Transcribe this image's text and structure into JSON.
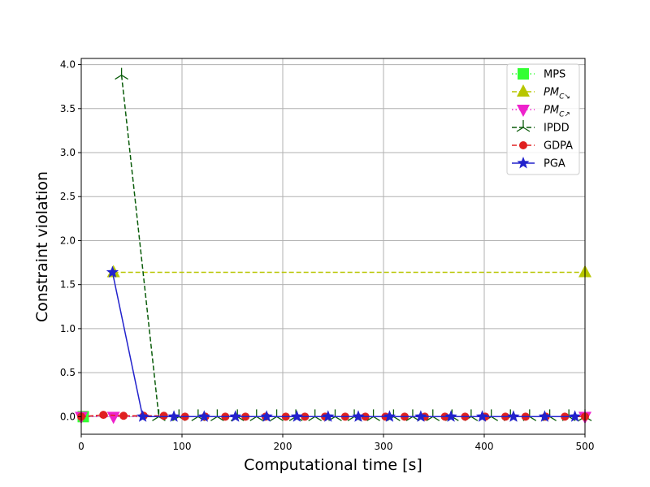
{
  "chart_data": {
    "type": "line",
    "xlabel": "Computational time [s]",
    "ylabel": "Constraint violation",
    "xlim": [
      0,
      500
    ],
    "ylim": [
      -0.2,
      4.07
    ],
    "xticks": [
      0,
      100,
      200,
      300,
      400,
      500
    ],
    "xtick_labels": [
      "0",
      "100",
      "200",
      "300",
      "400",
      "500"
    ],
    "yticks": [
      0.0,
      0.5,
      1.0,
      1.5,
      2.0,
      2.5,
      3.0,
      3.5,
      4.0
    ],
    "ytick_labels": [
      "0.0",
      "0.5",
      "1.0",
      "1.5",
      "2.0",
      "2.5",
      "3.0",
      "3.5",
      "4.0"
    ],
    "grid": true,
    "legend_position": "top-right",
    "series": [
      {
        "name": "MPS",
        "color": "#33ff33",
        "line_style": "dotted",
        "marker": "square",
        "x": [
          2
        ],
        "y": [
          0.0
        ]
      },
      {
        "name": "PM_C↘",
        "legend_main": "PM",
        "legend_sub": "C↘",
        "color": "#b8c600",
        "line_style": "dashed",
        "marker": "triangle-up",
        "x": [
          32,
          500
        ],
        "y": [
          1.64,
          1.64
        ]
      },
      {
        "name": "PM_C↗",
        "legend_main": "PM",
        "legend_sub": "C↗",
        "color": "#ee22cc",
        "line_style": "dotted",
        "marker": "triangle-down",
        "x": [
          0,
          32,
          500
        ],
        "y": [
          0.0,
          0.0,
          0.0
        ]
      },
      {
        "name": "IPDD",
        "color": "#0a5c0a",
        "line_style": "dashed",
        "marker": "tri-up",
        "x": [
          40,
          77,
          97,
          116,
          135,
          155,
          174,
          194,
          213,
          232,
          252,
          271,
          290,
          310,
          329,
          349,
          368,
          387,
          407,
          426,
          445,
          465,
          484,
          500
        ],
        "y": [
          3.88,
          0.0,
          0.0,
          0.0,
          0.0,
          0.0,
          0.0,
          0.0,
          0.0,
          0.0,
          0.0,
          0.0,
          0.0,
          0.0,
          0.0,
          0.0,
          0.0,
          0.0,
          0.0,
          0.0,
          0.0,
          0.0,
          0.0,
          0.0
        ]
      },
      {
        "name": "GDPA",
        "color": "#e02020",
        "line_style": "dashed",
        "marker": "circle",
        "x": [
          0,
          22,
          42,
          62,
          82,
          103,
          123,
          143,
          163,
          183,
          203,
          222,
          242,
          262,
          282,
          302,
          321,
          341,
          361,
          381,
          401,
          421,
          441,
          461,
          480,
          500
        ],
        "y": [
          0.0,
          0.02,
          0.01,
          0.01,
          0.01,
          0.0,
          0.0,
          0.0,
          0.0,
          0.0,
          0.0,
          0.0,
          0.0,
          0.0,
          0.0,
          0.0,
          0.0,
          0.0,
          0.0,
          0.0,
          0.0,
          0.0,
          0.0,
          0.0,
          0.0,
          0.0
        ]
      },
      {
        "name": "PGA",
        "color": "#2222cc",
        "line_style": "solid",
        "marker": "star",
        "x": [
          31,
          61,
          92,
          122,
          153,
          184,
          214,
          245,
          275,
          306,
          337,
          367,
          398,
          429,
          460,
          490
        ],
        "y": [
          1.64,
          0.0,
          0.0,
          0.0,
          0.0,
          0.0,
          0.0,
          0.0,
          0.0,
          0.0,
          0.0,
          0.0,
          0.0,
          0.0,
          0.0,
          0.0
        ]
      }
    ]
  }
}
